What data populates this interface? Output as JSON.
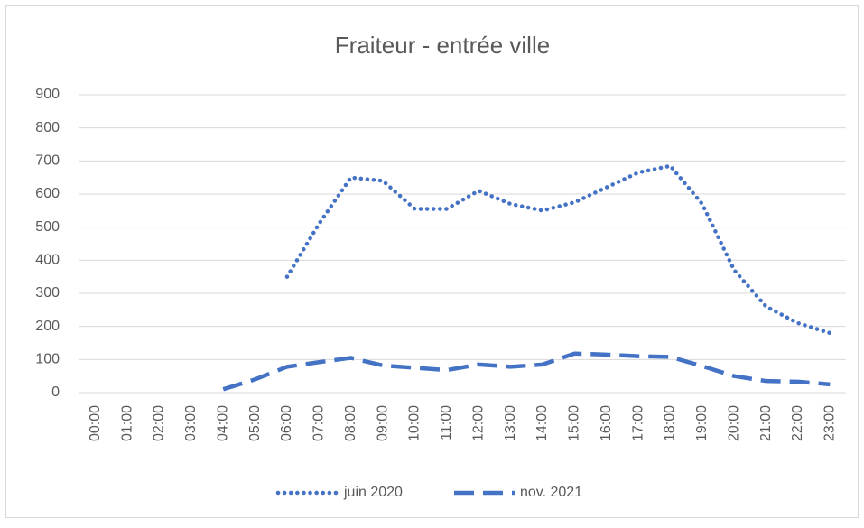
{
  "chart_data": {
    "type": "line",
    "title": "Fraiteur - entrée ville",
    "categories": [
      "00:00",
      "01:00",
      "02:00",
      "03:00",
      "04:00",
      "05:00",
      "06:00",
      "07:00",
      "08:00",
      "09:00",
      "10:00",
      "11:00",
      "12:00",
      "13:00",
      "14:00",
      "15:00",
      "16:00",
      "17:00",
      "18:00",
      "19:00",
      "20:00",
      "21:00",
      "22:00",
      "23:00"
    ],
    "series": [
      {
        "name": "juin 2020",
        "color": "#4472c4",
        "dash": "dotted",
        "values": [
          null,
          null,
          null,
          null,
          null,
          null,
          350,
          510,
          650,
          640,
          555,
          555,
          610,
          570,
          550,
          575,
          620,
          665,
          685,
          570,
          370,
          260,
          210,
          180
        ]
      },
      {
        "name": "nov. 2021",
        "color": "#4472c4",
        "dash": "dashed",
        "values": [
          null,
          null,
          null,
          null,
          10,
          40,
          78,
          92,
          105,
          82,
          75,
          68,
          85,
          78,
          85,
          118,
          115,
          110,
          108,
          80,
          50,
          35,
          33,
          25
        ]
      }
    ],
    "ylim": [
      0,
      900
    ],
    "yticks": [
      0,
      100,
      200,
      300,
      400,
      500,
      600,
      700,
      800,
      900
    ],
    "grid": true,
    "legend": "bottom"
  }
}
